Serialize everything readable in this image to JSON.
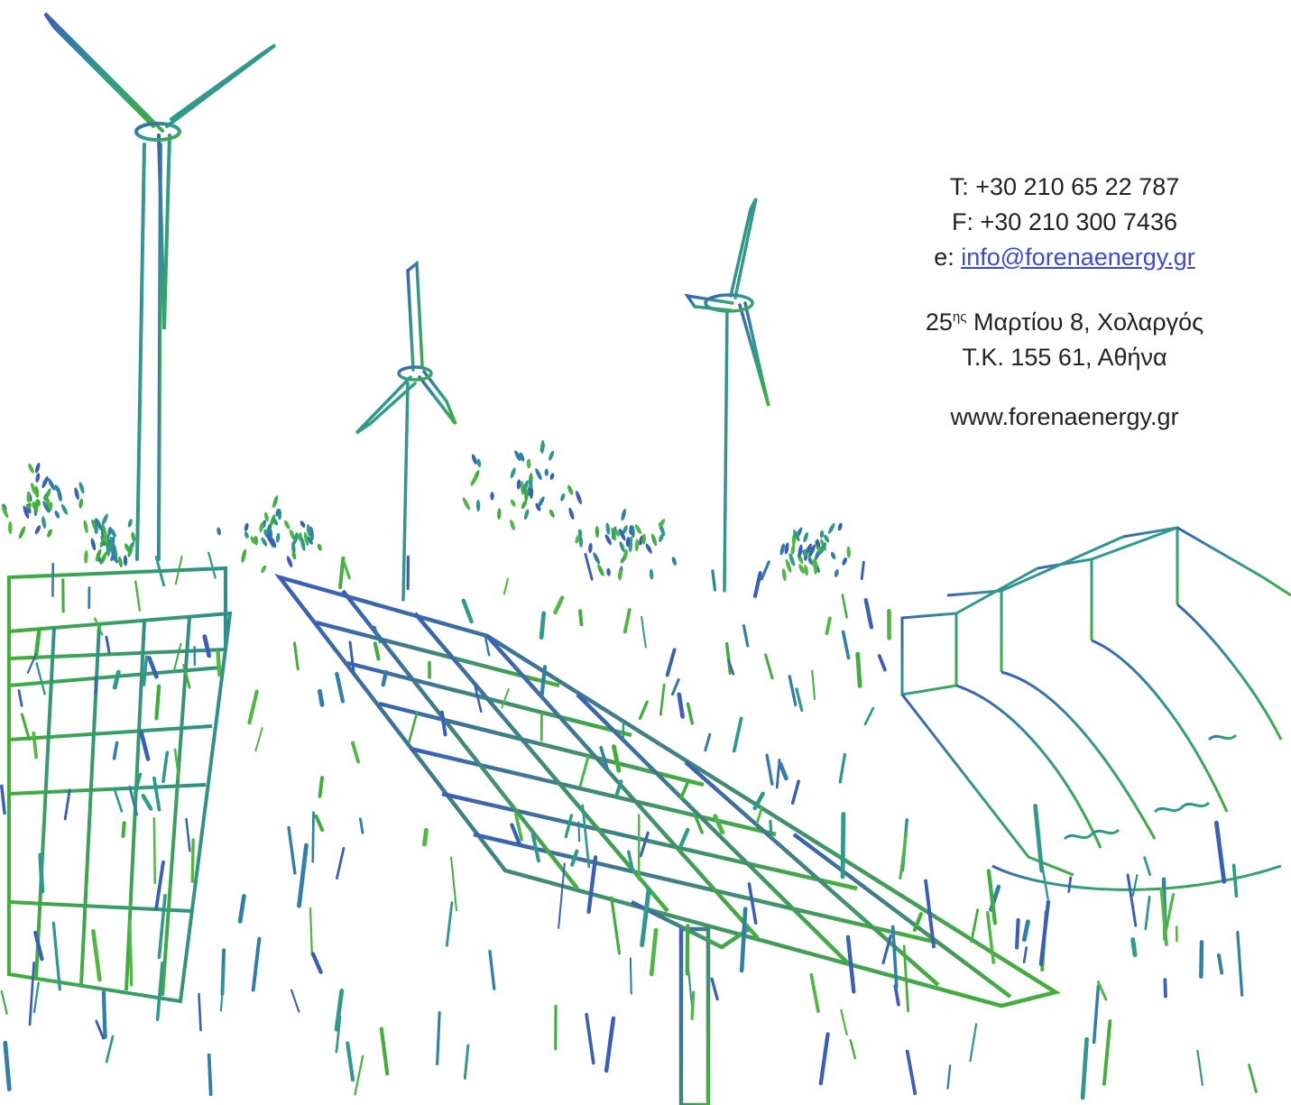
{
  "contact": {
    "phone": "T: +30 210 65 22 787",
    "fax": "F: +30 210 300 7436",
    "email_prefix": "e: ",
    "email": "info@forenaenergy.gr",
    "address_number": "25",
    "address_superscript": "ης",
    "address_line1_rest": " Μαρτίου 8, Χολαργός",
    "address_line2": "Τ.Κ. 155 61, Αθήνα",
    "website": "www.forenaenergy.gr"
  },
  "illustration": {
    "elements": [
      "wind-turbine",
      "wind-turbine",
      "wind-turbine",
      "solar-panel-array",
      "solar-panel-tracker",
      "hydro-dam",
      "grass",
      "trees"
    ],
    "colors": {
      "blue": "#3a5fb8",
      "teal": "#2f9a8c",
      "green": "#3fae3a"
    }
  }
}
